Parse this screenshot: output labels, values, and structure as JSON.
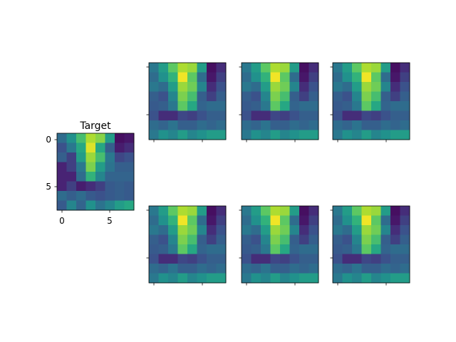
{
  "chart_data": [
    {
      "type": "heatmap",
      "title": "Target",
      "colormap": "viridis",
      "vmin": 0,
      "vmax": 1,
      "x_ticks": [
        0,
        5
      ],
      "y_ticks": [
        0,
        5
      ],
      "x_tick_labels": [
        "0",
        "5"
      ],
      "y_tick_labels": [
        "0",
        "5"
      ],
      "values": [
        [
          0.35,
          0.5,
          0.7,
          0.88,
          0.82,
          0.55,
          0.05,
          0.08
        ],
        [
          0.25,
          0.4,
          0.6,
          0.95,
          0.6,
          0.3,
          0.1,
          0.15
        ],
        [
          0.3,
          0.2,
          0.55,
          0.85,
          0.7,
          0.4,
          0.22,
          0.25
        ],
        [
          0.12,
          0.2,
          0.4,
          0.8,
          0.55,
          0.38,
          0.3,
          0.3
        ],
        [
          0.12,
          0.12,
          0.35,
          0.65,
          0.45,
          0.32,
          0.32,
          0.32
        ],
        [
          0.12,
          0.2,
          0.1,
          0.15,
          0.2,
          0.28,
          0.3,
          0.28
        ],
        [
          0.35,
          0.3,
          0.35,
          0.28,
          0.25,
          0.28,
          0.3,
          0.28
        ],
        [
          0.28,
          0.45,
          0.32,
          0.5,
          0.38,
          0.45,
          0.55,
          0.6
        ]
      ]
    },
    {
      "type": "heatmap",
      "colormap": "viridis",
      "vmin": 0,
      "vmax": 1,
      "values": [
        [
          0.4,
          0.55,
          0.75,
          0.88,
          0.85,
          0.55,
          0.05,
          0.15
        ],
        [
          0.35,
          0.5,
          0.65,
          0.98,
          0.75,
          0.35,
          0.08,
          0.2
        ],
        [
          0.4,
          0.35,
          0.55,
          0.85,
          0.78,
          0.45,
          0.15,
          0.25
        ],
        [
          0.3,
          0.25,
          0.45,
          0.8,
          0.7,
          0.3,
          0.2,
          0.3
        ],
        [
          0.28,
          0.3,
          0.4,
          0.75,
          0.6,
          0.32,
          0.35,
          0.35
        ],
        [
          0.25,
          0.15,
          0.15,
          0.22,
          0.2,
          0.25,
          0.3,
          0.3
        ],
        [
          0.35,
          0.32,
          0.38,
          0.3,
          0.3,
          0.35,
          0.32,
          0.35
        ],
        [
          0.4,
          0.5,
          0.45,
          0.55,
          0.45,
          0.5,
          0.55,
          0.55
        ]
      ]
    },
    {
      "type": "heatmap",
      "colormap": "viridis",
      "vmin": 0,
      "vmax": 1,
      "values": [
        [
          0.4,
          0.55,
          0.75,
          0.88,
          0.85,
          0.55,
          0.05,
          0.15
        ],
        [
          0.35,
          0.5,
          0.65,
          0.98,
          0.75,
          0.35,
          0.08,
          0.2
        ],
        [
          0.4,
          0.35,
          0.55,
          0.85,
          0.78,
          0.45,
          0.15,
          0.25
        ],
        [
          0.3,
          0.25,
          0.45,
          0.8,
          0.7,
          0.3,
          0.2,
          0.3
        ],
        [
          0.28,
          0.3,
          0.4,
          0.75,
          0.6,
          0.32,
          0.35,
          0.35
        ],
        [
          0.25,
          0.15,
          0.15,
          0.22,
          0.2,
          0.25,
          0.3,
          0.3
        ],
        [
          0.35,
          0.32,
          0.38,
          0.3,
          0.3,
          0.35,
          0.32,
          0.35
        ],
        [
          0.4,
          0.5,
          0.45,
          0.55,
          0.45,
          0.5,
          0.55,
          0.55
        ]
      ]
    },
    {
      "type": "heatmap",
      "colormap": "viridis",
      "vmin": 0,
      "vmax": 1,
      "values": [
        [
          0.4,
          0.55,
          0.75,
          0.88,
          0.85,
          0.55,
          0.05,
          0.15
        ],
        [
          0.35,
          0.5,
          0.65,
          0.98,
          0.75,
          0.35,
          0.08,
          0.2
        ],
        [
          0.4,
          0.35,
          0.55,
          0.85,
          0.78,
          0.45,
          0.15,
          0.25
        ],
        [
          0.3,
          0.25,
          0.45,
          0.8,
          0.7,
          0.3,
          0.2,
          0.3
        ],
        [
          0.28,
          0.3,
          0.4,
          0.75,
          0.6,
          0.32,
          0.35,
          0.35
        ],
        [
          0.25,
          0.15,
          0.15,
          0.22,
          0.2,
          0.25,
          0.3,
          0.3
        ],
        [
          0.35,
          0.32,
          0.38,
          0.3,
          0.3,
          0.35,
          0.32,
          0.35
        ],
        [
          0.4,
          0.5,
          0.45,
          0.55,
          0.45,
          0.5,
          0.55,
          0.55
        ]
      ]
    },
    {
      "type": "heatmap",
      "colormap": "viridis",
      "vmin": 0,
      "vmax": 1,
      "values": [
        [
          0.4,
          0.55,
          0.75,
          0.88,
          0.85,
          0.55,
          0.05,
          0.15
        ],
        [
          0.35,
          0.5,
          0.65,
          0.98,
          0.75,
          0.35,
          0.08,
          0.2
        ],
        [
          0.4,
          0.35,
          0.55,
          0.85,
          0.78,
          0.45,
          0.15,
          0.25
        ],
        [
          0.3,
          0.25,
          0.45,
          0.8,
          0.7,
          0.3,
          0.2,
          0.3
        ],
        [
          0.28,
          0.3,
          0.4,
          0.75,
          0.6,
          0.32,
          0.35,
          0.35
        ],
        [
          0.25,
          0.15,
          0.15,
          0.22,
          0.2,
          0.25,
          0.3,
          0.3
        ],
        [
          0.35,
          0.32,
          0.38,
          0.3,
          0.3,
          0.35,
          0.32,
          0.35
        ],
        [
          0.4,
          0.5,
          0.45,
          0.55,
          0.45,
          0.5,
          0.55,
          0.55
        ]
      ]
    },
    {
      "type": "heatmap",
      "colormap": "viridis",
      "vmin": 0,
      "vmax": 1,
      "values": [
        [
          0.4,
          0.55,
          0.75,
          0.88,
          0.85,
          0.55,
          0.05,
          0.15
        ],
        [
          0.35,
          0.5,
          0.65,
          0.98,
          0.75,
          0.35,
          0.08,
          0.2
        ],
        [
          0.4,
          0.35,
          0.55,
          0.85,
          0.78,
          0.45,
          0.15,
          0.25
        ],
        [
          0.3,
          0.25,
          0.45,
          0.8,
          0.7,
          0.3,
          0.2,
          0.3
        ],
        [
          0.28,
          0.3,
          0.4,
          0.75,
          0.6,
          0.32,
          0.35,
          0.35
        ],
        [
          0.25,
          0.15,
          0.15,
          0.22,
          0.2,
          0.25,
          0.3,
          0.3
        ],
        [
          0.35,
          0.32,
          0.38,
          0.3,
          0.3,
          0.35,
          0.32,
          0.35
        ],
        [
          0.4,
          0.5,
          0.45,
          0.55,
          0.45,
          0.5,
          0.55,
          0.55
        ]
      ]
    },
    {
      "type": "heatmap",
      "colormap": "viridis",
      "vmin": 0,
      "vmax": 1,
      "values": [
        [
          0.4,
          0.55,
          0.75,
          0.88,
          0.85,
          0.55,
          0.05,
          0.15
        ],
        [
          0.35,
          0.5,
          0.65,
          0.98,
          0.75,
          0.35,
          0.08,
          0.2
        ],
        [
          0.4,
          0.35,
          0.55,
          0.85,
          0.78,
          0.45,
          0.15,
          0.25
        ],
        [
          0.3,
          0.25,
          0.45,
          0.8,
          0.7,
          0.3,
          0.2,
          0.3
        ],
        [
          0.28,
          0.3,
          0.4,
          0.75,
          0.6,
          0.32,
          0.35,
          0.35
        ],
        [
          0.25,
          0.15,
          0.15,
          0.22,
          0.2,
          0.25,
          0.3,
          0.3
        ],
        [
          0.35,
          0.32,
          0.38,
          0.3,
          0.3,
          0.35,
          0.32,
          0.35
        ],
        [
          0.4,
          0.5,
          0.45,
          0.55,
          0.45,
          0.5,
          0.55,
          0.55
        ]
      ]
    }
  ]
}
